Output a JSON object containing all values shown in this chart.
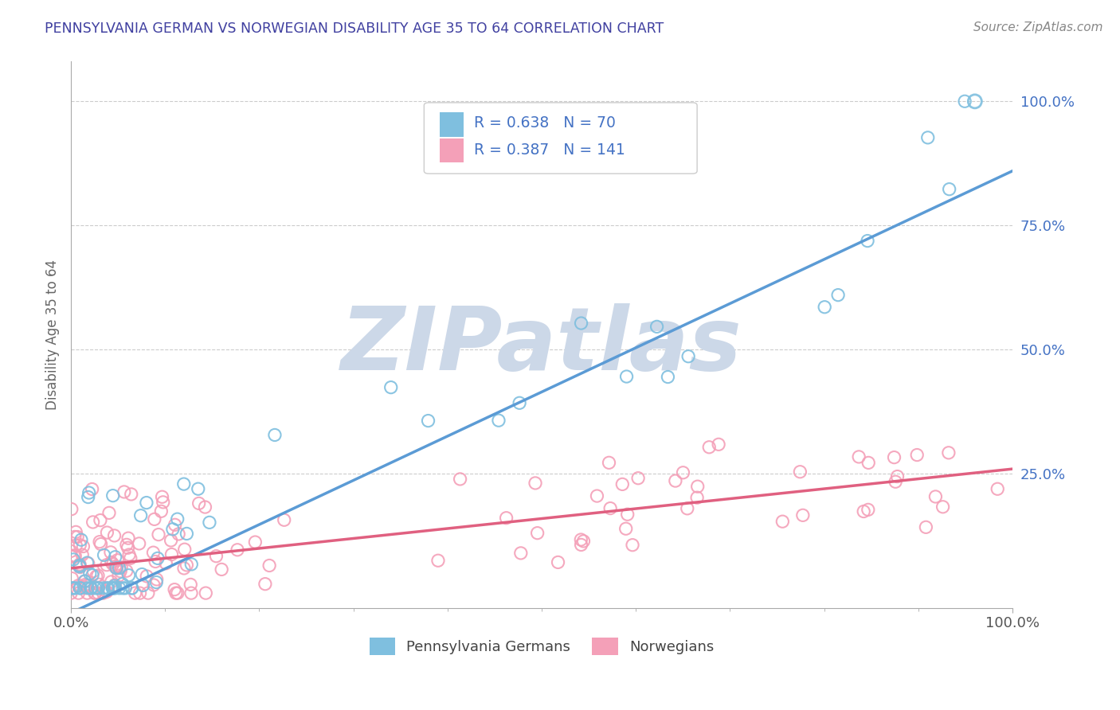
{
  "title": "PENNSYLVANIA GERMAN VS NORWEGIAN DISABILITY AGE 35 TO 64 CORRELATION CHART",
  "source": "Source: ZipAtlas.com",
  "ylabel": "Disability Age 35 to 64",
  "xlim": [
    0.0,
    1.0
  ],
  "ylim": [
    -0.02,
    1.08
  ],
  "yticks": [
    0.25,
    0.5,
    0.75,
    1.0
  ],
  "ytick_labels": [
    "25.0%",
    "50.0%",
    "75.0%",
    "100.0%"
  ],
  "xticks": [
    0.0,
    1.0
  ],
  "xtick_labels": [
    "0.0%",
    "100.0%"
  ],
  "legend_r1": "R = 0.638   N = 70",
  "legend_r2": "R = 0.387   N = 141",
  "legend_label_bottom1": "Pennsylvania Germans",
  "legend_label_bottom2": "Norwegians",
  "color_blue": "#7fbfdf",
  "color_pink": "#f4a0b8",
  "line_color_blue": "#5b9bd5",
  "line_color_pink": "#e06080",
  "background_color": "#ffffff",
  "watermark_text": "ZIPatlas",
  "watermark_color": "#ccd8e8",
  "title_color": "#4040a0",
  "tick_color_blue": "#4472c4",
  "pg_line_x": [
    0.0,
    1.0
  ],
  "pg_line_y": [
    -0.03,
    0.86
  ],
  "no_line_x": [
    0.0,
    1.0
  ],
  "no_line_y": [
    0.06,
    0.26
  ]
}
